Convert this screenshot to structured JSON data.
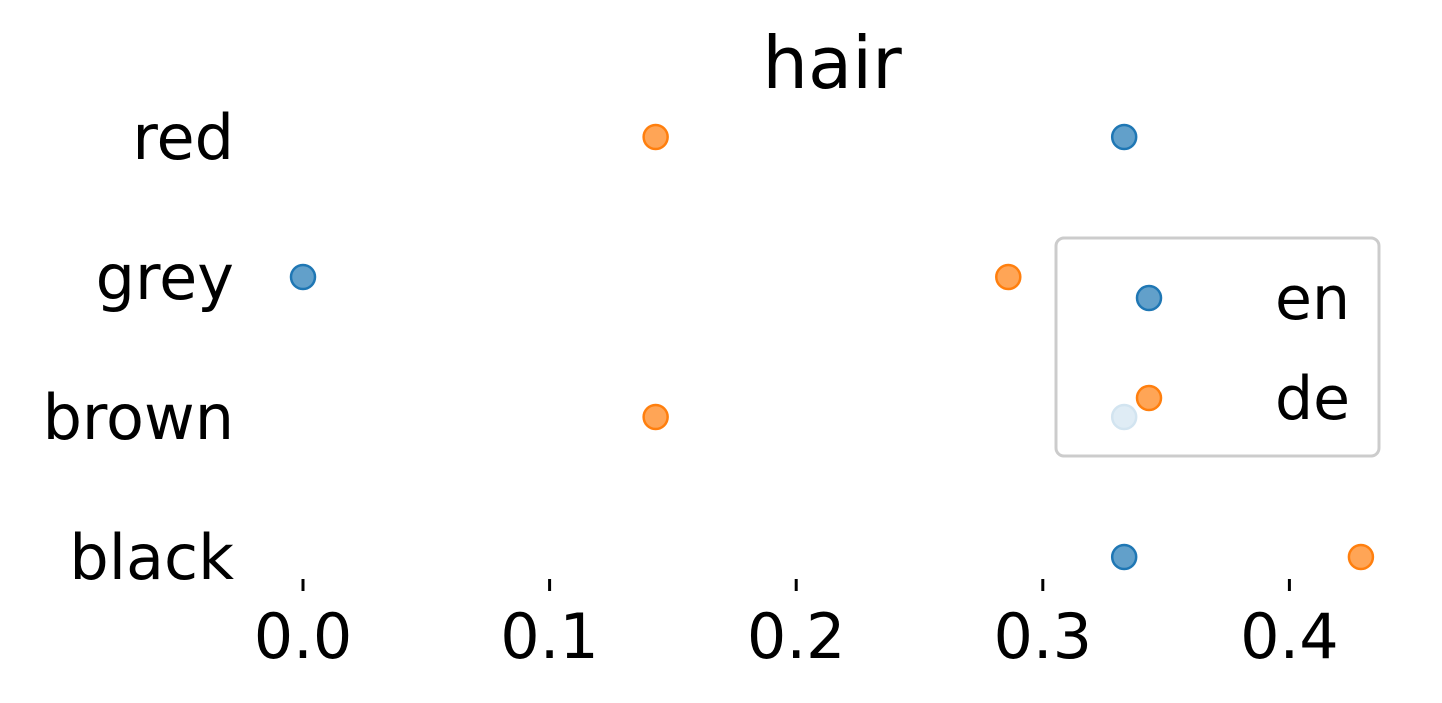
{
  "chart_data": {
    "type": "scatter",
    "title": "hair",
    "xlabel": "",
    "ylabel": "",
    "categories": [
      "black",
      "brown",
      "grey",
      "red"
    ],
    "xlim": [
      -0.0125,
      0.4375
    ],
    "xticks": [
      "0.0",
      "0.1",
      "0.2",
      "0.3",
      "0.4"
    ],
    "grid": false,
    "legend": "right",
    "series": [
      {
        "name": "en",
        "color": "#1f77b4",
        "values": [
          0.333,
          0.333,
          0.0,
          0.333
        ]
      },
      {
        "name": "de",
        "color": "#ff7f0e",
        "values": [
          0.429,
          0.143,
          0.286,
          0.143
        ]
      }
    ]
  }
}
